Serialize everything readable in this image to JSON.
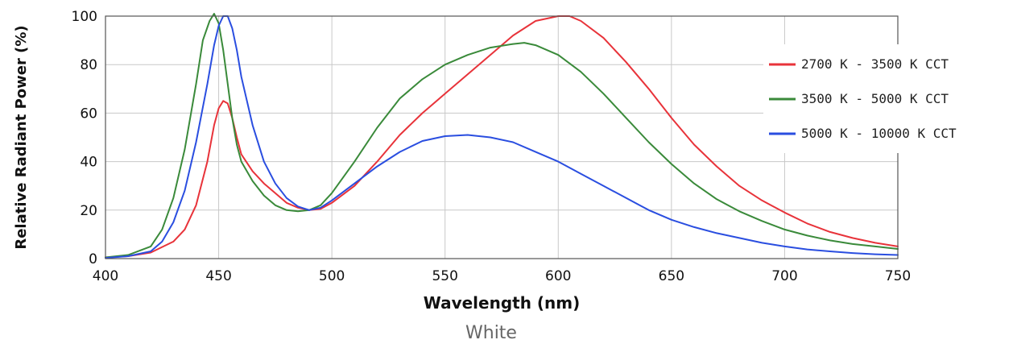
{
  "chart_data": {
    "type": "line",
    "title": "",
    "caption": "White",
    "xlabel": "Wavelength (nm)",
    "ylabel": "Relative Radiant Power (%)",
    "xlim": [
      400,
      750
    ],
    "ylim": [
      0,
      100
    ],
    "xticks": [
      400,
      450,
      500,
      550,
      600,
      650,
      700,
      750
    ],
    "yticks": [
      0,
      20,
      40,
      60,
      80,
      100
    ],
    "grid": true,
    "legend_position": "right",
    "series": [
      {
        "name": "2700 K - 3500 K CCT",
        "color": "#e8333a",
        "x": [
          400,
          410,
          420,
          430,
          435,
          440,
          445,
          448,
          450,
          452,
          454,
          456,
          458,
          460,
          465,
          470,
          475,
          480,
          485,
          490,
          495,
          500,
          510,
          520,
          530,
          540,
          550,
          560,
          570,
          580,
          590,
          600,
          605,
          610,
          620,
          630,
          640,
          650,
          660,
          670,
          680,
          690,
          700,
          710,
          720,
          730,
          740,
          750
        ],
        "y": [
          0.5,
          1,
          2.5,
          7,
          12,
          22,
          40,
          55,
          62,
          65,
          64,
          58,
          50,
          43,
          36,
          31,
          27,
          23,
          21,
          20,
          20.5,
          23,
          30,
          40,
          51,
          60,
          68,
          76,
          84,
          92,
          98,
          100,
          100,
          98,
          91,
          81,
          70,
          58,
          47,
          38,
          30,
          24,
          19,
          14.5,
          11,
          8.5,
          6.5,
          5
        ]
      },
      {
        "name": "3500 K - 5000 K CCT",
        "color": "#3a8a3a",
        "x": [
          400,
          410,
          420,
          425,
          430,
          435,
          440,
          443,
          446,
          448,
          450,
          452,
          454,
          456,
          458,
          460,
          465,
          470,
          475,
          480,
          485,
          490,
          495,
          500,
          510,
          520,
          530,
          540,
          550,
          560,
          570,
          580,
          585,
          590,
          600,
          610,
          620,
          630,
          640,
          650,
          660,
          670,
          680,
          690,
          700,
          710,
          720,
          730,
          740,
          750
        ],
        "y": [
          0.5,
          1.5,
          5,
          12,
          25,
          45,
          72,
          90,
          98,
          101,
          97,
          86,
          72,
          58,
          47,
          40,
          32,
          26,
          22,
          20,
          19.5,
          20,
          22,
          27,
          40,
          54,
          66,
          74,
          80,
          84,
          87,
          88.5,
          89,
          88,
          84,
          77,
          68,
          58,
          48,
          39,
          31,
          24.5,
          19.5,
          15.5,
          12,
          9.5,
          7.5,
          6,
          5,
          4
        ]
      },
      {
        "name": "5000 K - 10000 K CCT",
        "color": "#2a4ee0",
        "x": [
          400,
          410,
          420,
          425,
          430,
          435,
          440,
          445,
          448,
          450,
          452,
          454,
          456,
          458,
          460,
          465,
          470,
          475,
          480,
          485,
          490,
          495,
          500,
          510,
          520,
          530,
          540,
          550,
          560,
          570,
          580,
          590,
          600,
          610,
          620,
          630,
          640,
          650,
          660,
          670,
          680,
          690,
          700,
          710,
          720,
          730,
          740,
          750
        ],
        "y": [
          0.3,
          1,
          3,
          7,
          15,
          28,
          48,
          72,
          88,
          96,
          100,
          100,
          95,
          86,
          75,
          55,
          40,
          31,
          25,
          21.5,
          20,
          21,
          24,
          31,
          38,
          44,
          48.5,
          50.5,
          51,
          50,
          48,
          44,
          40,
          35,
          30,
          25,
          20,
          16,
          13,
          10.5,
          8.5,
          6.5,
          5,
          3.8,
          3,
          2.3,
          1.8,
          1.5
        ]
      }
    ]
  }
}
